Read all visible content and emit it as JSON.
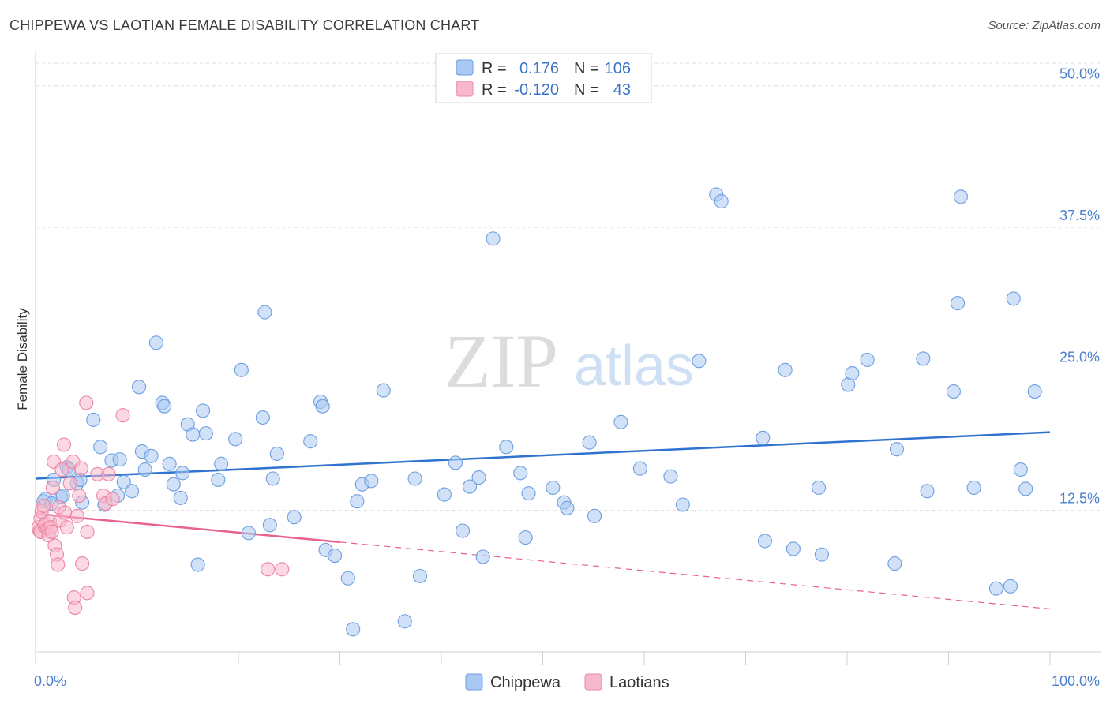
{
  "title": "CHIPPEWA VS LAOTIAN FEMALE DISABILITY CORRELATION CHART",
  "source": "Source: ZipAtlas.com",
  "watermark": {
    "zip": "ZIP",
    "atlas": "atlas"
  },
  "colors": {
    "chippewa_fill": "#a9c8f2",
    "chippewa_stroke": "#6e9fe0",
    "chippewa_line": "#2f72cf",
    "laotian_fill": "#f7b8cb",
    "laotian_stroke": "#ec86a6",
    "laotian_line": "#e9628e",
    "tick_text": "#4a7fd1"
  },
  "stats": {
    "r_label": "R =",
    "n_label": "N =",
    "rows": [
      {
        "series": "Chippewa",
        "r": "0.176",
        "n": "106"
      },
      {
        "series": "Laotians",
        "r": "-0.120",
        "n": "43"
      }
    ]
  },
  "chart_data": {
    "type": "scatter",
    "title": "CHIPPEWA VS LAOTIAN FEMALE DISABILITY CORRELATION CHART",
    "xlabel": "",
    "ylabel": "Female Disability",
    "xlim": [
      0,
      100
    ],
    "ylim": [
      0,
      52
    ],
    "x_tick_labels": [
      "0.0%",
      "100.0%"
    ],
    "y_ticks": [
      12.5,
      25.0,
      37.5,
      50.0
    ],
    "y_tick_labels": [
      "12.5%",
      "25.0%",
      "37.5%",
      "50.0%"
    ],
    "grid": true,
    "legend_position": "bottom-center",
    "series": [
      {
        "name": "Chippewa",
        "trend": {
          "x": [
            0,
            100
          ],
          "y": [
            15.3,
            19.4
          ]
        },
        "points": [
          [
            0.8,
            13.3
          ],
          [
            1.0,
            13.5
          ],
          [
            1.6,
            13.1
          ],
          [
            1.8,
            15.2
          ],
          [
            2.5,
            13.7
          ],
          [
            2.7,
            13.8
          ],
          [
            3.1,
            16.3
          ],
          [
            3.3,
            16.1
          ],
          [
            4.1,
            14.9
          ],
          [
            4.4,
            15.2
          ],
          [
            4.6,
            13.2
          ],
          [
            5.7,
            20.5
          ],
          [
            6.4,
            18.1
          ],
          [
            6.8,
            13.0
          ],
          [
            7.5,
            16.9
          ],
          [
            8.1,
            13.8
          ],
          [
            8.3,
            17.0
          ],
          [
            8.7,
            15.0
          ],
          [
            9.5,
            14.2
          ],
          [
            10.2,
            23.4
          ],
          [
            10.5,
            17.7
          ],
          [
            10.8,
            16.1
          ],
          [
            11.4,
            17.3
          ],
          [
            11.9,
            27.3
          ],
          [
            12.5,
            22.0
          ],
          [
            12.7,
            21.7
          ],
          [
            13.2,
            16.6
          ],
          [
            13.6,
            14.8
          ],
          [
            14.3,
            13.6
          ],
          [
            14.5,
            15.8
          ],
          [
            15.0,
            20.1
          ],
          [
            15.5,
            19.2
          ],
          [
            16.0,
            7.7
          ],
          [
            16.5,
            21.3
          ],
          [
            16.8,
            19.3
          ],
          [
            18.0,
            15.2
          ],
          [
            18.3,
            16.6
          ],
          [
            19.7,
            18.8
          ],
          [
            20.3,
            24.9
          ],
          [
            21.0,
            10.5
          ],
          [
            22.4,
            20.7
          ],
          [
            22.6,
            30.0
          ],
          [
            23.1,
            11.2
          ],
          [
            23.4,
            15.3
          ],
          [
            23.8,
            17.5
          ],
          [
            25.5,
            11.9
          ],
          [
            27.1,
            18.6
          ],
          [
            28.1,
            22.1
          ],
          [
            28.3,
            21.7
          ],
          [
            28.6,
            9.0
          ],
          [
            29.5,
            8.5
          ],
          [
            30.8,
            6.5
          ],
          [
            31.3,
            2.0
          ],
          [
            31.7,
            13.3
          ],
          [
            32.2,
            14.8
          ],
          [
            33.1,
            15.1
          ],
          [
            34.3,
            23.1
          ],
          [
            36.4,
            2.7
          ],
          [
            37.4,
            15.3
          ],
          [
            37.9,
            6.7
          ],
          [
            40.3,
            13.9
          ],
          [
            41.4,
            16.7
          ],
          [
            42.1,
            10.7
          ],
          [
            42.8,
            14.6
          ],
          [
            43.7,
            15.4
          ],
          [
            44.1,
            8.4
          ],
          [
            45.1,
            36.5
          ],
          [
            46.4,
            18.1
          ],
          [
            47.8,
            15.8
          ],
          [
            48.3,
            10.1
          ],
          [
            48.6,
            14.0
          ],
          [
            51.0,
            14.5
          ],
          [
            52.1,
            13.2
          ],
          [
            52.4,
            12.7
          ],
          [
            54.6,
            18.5
          ],
          [
            55.1,
            12.0
          ],
          [
            57.7,
            20.3
          ],
          [
            59.6,
            16.2
          ],
          [
            62.6,
            15.5
          ],
          [
            63.8,
            13.0
          ],
          [
            65.4,
            25.7
          ],
          [
            67.1,
            40.4
          ],
          [
            67.6,
            39.8
          ],
          [
            71.7,
            18.9
          ],
          [
            71.9,
            9.8
          ],
          [
            73.9,
            24.9
          ],
          [
            74.7,
            9.1
          ],
          [
            77.2,
            14.5
          ],
          [
            77.5,
            8.6
          ],
          [
            80.1,
            23.6
          ],
          [
            80.5,
            24.6
          ],
          [
            82.0,
            25.8
          ],
          [
            84.7,
            7.8
          ],
          [
            84.9,
            17.9
          ],
          [
            87.5,
            25.9
          ],
          [
            87.9,
            14.2
          ],
          [
            90.5,
            23.0
          ],
          [
            90.9,
            30.8
          ],
          [
            91.2,
            40.2
          ],
          [
            92.5,
            14.5
          ],
          [
            94.7,
            5.6
          ],
          [
            96.1,
            5.8
          ],
          [
            96.4,
            31.2
          ],
          [
            97.1,
            16.1
          ],
          [
            97.6,
            14.4
          ],
          [
            98.5,
            23.0
          ]
        ]
      },
      {
        "name": "Laotians",
        "trend": {
          "x": [
            0,
            30
          ],
          "y": [
            12.2,
            9.7
          ]
        },
        "trend_dashed": {
          "x": [
            30,
            100
          ],
          "y": [
            9.7,
            3.8
          ]
        },
        "points": [
          [
            0.3,
            11.0
          ],
          [
            0.4,
            10.7
          ],
          [
            0.5,
            11.8
          ],
          [
            0.5,
            10.6
          ],
          [
            0.6,
            12.4
          ],
          [
            0.8,
            12.9
          ],
          [
            0.9,
            11.1
          ],
          [
            1.0,
            11.3
          ],
          [
            1.2,
            10.9
          ],
          [
            1.3,
            10.3
          ],
          [
            1.4,
            11.5
          ],
          [
            1.5,
            11.0
          ],
          [
            1.6,
            10.6
          ],
          [
            1.7,
            14.5
          ],
          [
            1.8,
            16.8
          ],
          [
            1.9,
            9.4
          ],
          [
            2.1,
            8.6
          ],
          [
            2.2,
            7.7
          ],
          [
            2.3,
            12.8
          ],
          [
            2.4,
            11.6
          ],
          [
            2.6,
            16.1
          ],
          [
            2.8,
            18.3
          ],
          [
            2.9,
            12.3
          ],
          [
            3.1,
            11.0
          ],
          [
            3.4,
            14.9
          ],
          [
            3.7,
            16.8
          ],
          [
            3.8,
            4.8
          ],
          [
            3.9,
            3.9
          ],
          [
            4.1,
            12.0
          ],
          [
            4.3,
            13.8
          ],
          [
            4.5,
            16.2
          ],
          [
            4.6,
            7.8
          ],
          [
            5.0,
            22.0
          ],
          [
            5.1,
            10.6
          ],
          [
            5.1,
            5.2
          ],
          [
            6.1,
            15.7
          ],
          [
            6.7,
            13.8
          ],
          [
            6.9,
            13.1
          ],
          [
            7.2,
            15.7
          ],
          [
            7.6,
            13.5
          ],
          [
            8.6,
            20.9
          ],
          [
            22.9,
            7.3
          ],
          [
            24.3,
            7.3
          ]
        ]
      }
    ]
  }
}
